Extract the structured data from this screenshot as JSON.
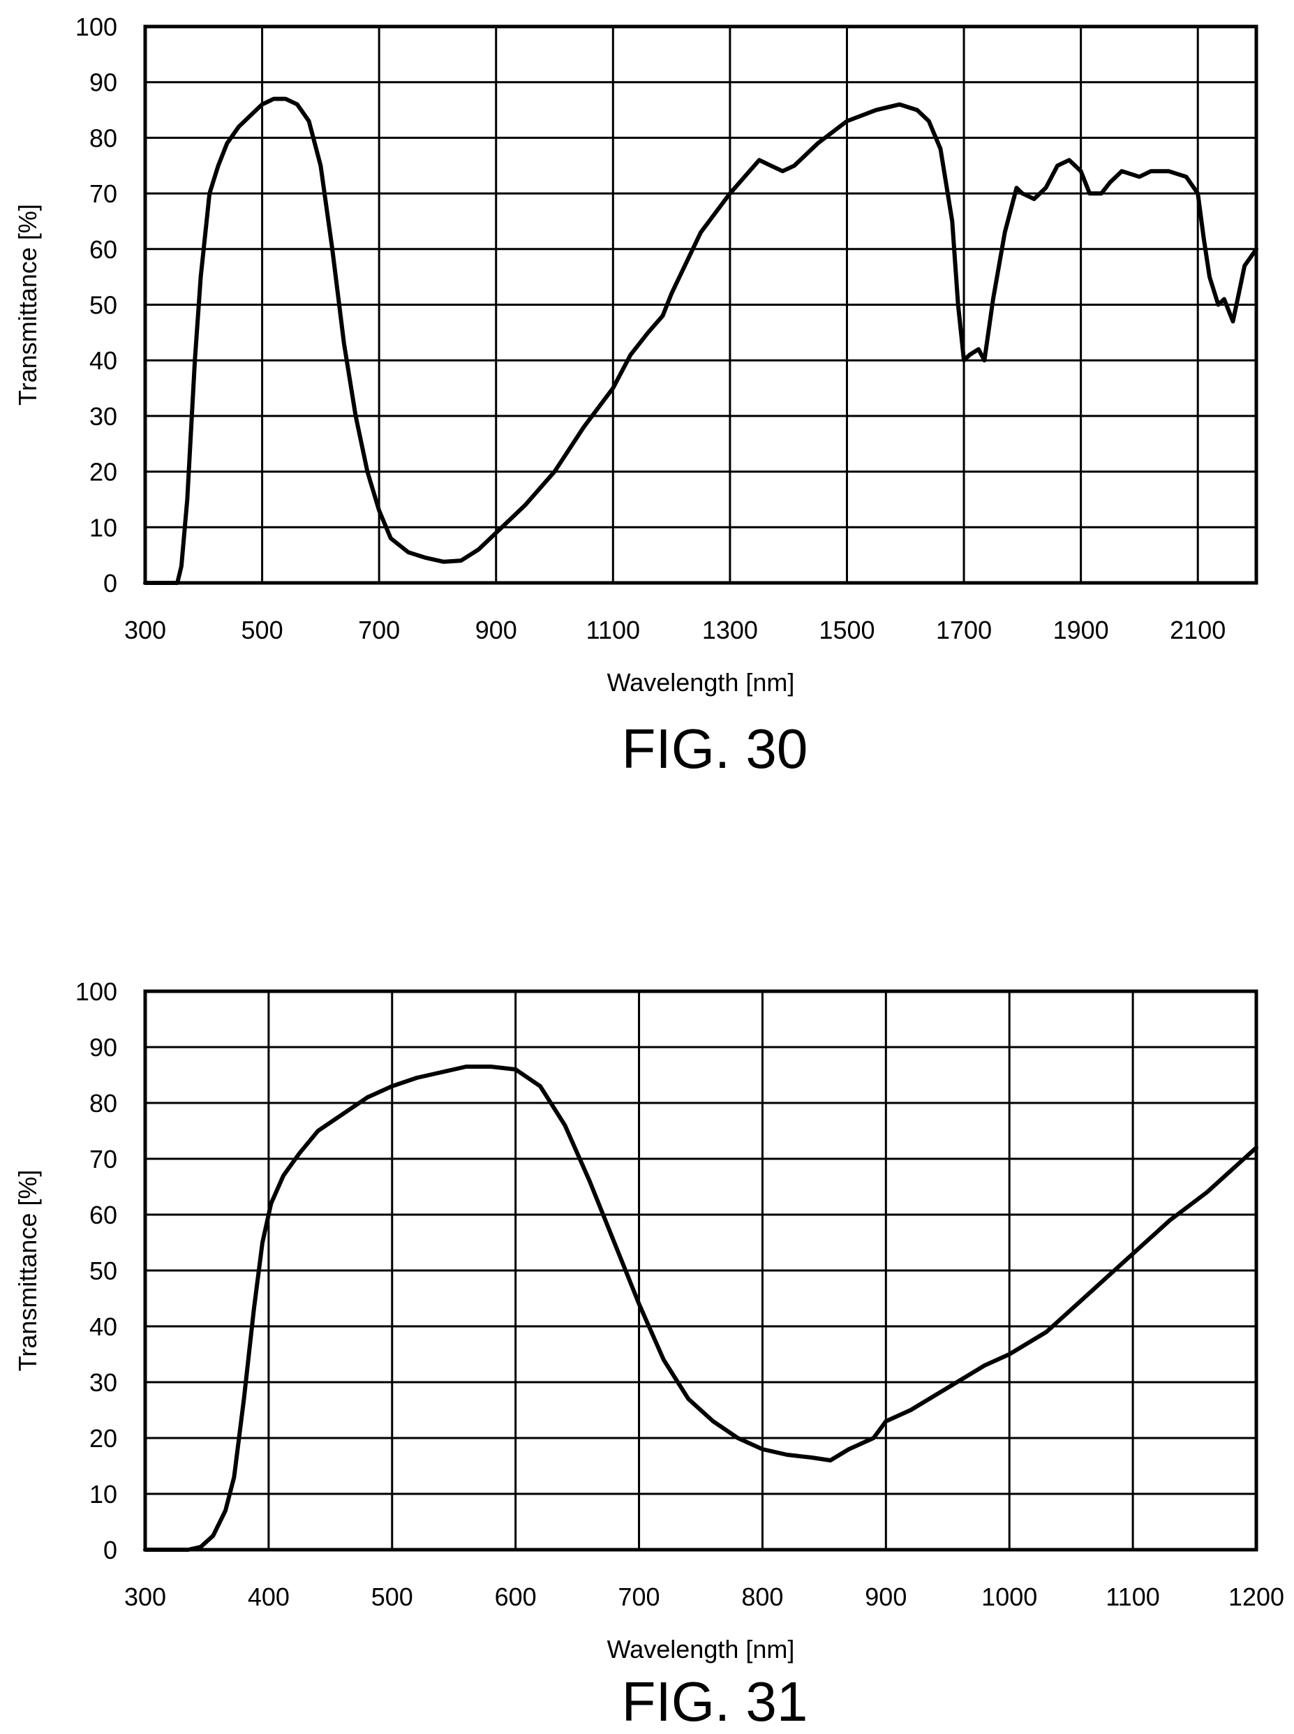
{
  "chart_data": [
    {
      "type": "line",
      "caption": "FIG. 30",
      "xlabel": "Wavelength [nm]",
      "ylabel": "Transmittance [%]",
      "xlim": [
        300,
        2200
      ],
      "ylim": [
        0,
        100
      ],
      "xticks": [
        300,
        500,
        700,
        900,
        1100,
        1300,
        1500,
        1700,
        1900,
        2100
      ],
      "yticks": [
        0,
        10,
        20,
        30,
        40,
        50,
        60,
        70,
        80,
        90,
        100
      ],
      "grid": true,
      "series": [
        {
          "x": [
            300,
            355,
            362,
            372,
            385,
            395,
            410,
            425,
            440,
            460,
            480,
            500,
            520,
            540,
            560,
            580,
            600,
            620,
            640,
            660,
            680,
            700,
            720,
            750,
            780,
            810,
            840,
            870,
            900,
            950,
            1000,
            1050,
            1100,
            1130,
            1160,
            1185,
            1200,
            1250,
            1300,
            1350,
            1370,
            1390,
            1410,
            1450,
            1500,
            1550,
            1590,
            1620,
            1640,
            1660,
            1680,
            1690,
            1700,
            1710,
            1725,
            1735,
            1750,
            1770,
            1790,
            1800,
            1820,
            1840,
            1860,
            1880,
            1900,
            1915,
            1935,
            1950,
            1970,
            2000,
            2020,
            2050,
            2080,
            2100,
            2110,
            2120,
            2135,
            2145,
            2160,
            2170,
            2180,
            2200
          ],
          "y": [
            0,
            0,
            3,
            15,
            40,
            55,
            70,
            75,
            79,
            82,
            84,
            86,
            87,
            87,
            86,
            83,
            75,
            60,
            43,
            30,
            20,
            13,
            8,
            5.5,
            4.5,
            3.8,
            4,
            6,
            9,
            14,
            20,
            28,
            35,
            41,
            45,
            48,
            52,
            63,
            70,
            76,
            75,
            74,
            75,
            79,
            83,
            85,
            86,
            85,
            83,
            78,
            65,
            50,
            40,
            41,
            42,
            40,
            51,
            63,
            71,
            70,
            69,
            71,
            75,
            76,
            74,
            70,
            70,
            72,
            74,
            73,
            74,
            74,
            73,
            70,
            62,
            55,
            50,
            51,
            47,
            52,
            57,
            60
          ]
        }
      ]
    },
    {
      "type": "line",
      "caption": "FIG. 31",
      "xlabel": "Wavelength [nm]",
      "ylabel": "Transmittance [%]",
      "xlim": [
        300,
        1200
      ],
      "ylim": [
        0,
        100
      ],
      "xticks": [
        300,
        400,
        500,
        600,
        700,
        800,
        900,
        1000,
        1100,
        1200
      ],
      "yticks": [
        0,
        10,
        20,
        30,
        40,
        50,
        60,
        70,
        80,
        90,
        100
      ],
      "grid": true,
      "series": [
        {
          "x": [
            300,
            335,
            345,
            355,
            365,
            372,
            380,
            388,
            395,
            402,
            412,
            425,
            440,
            460,
            480,
            500,
            520,
            540,
            560,
            580,
            600,
            620,
            640,
            660,
            680,
            700,
            720,
            740,
            760,
            780,
            800,
            820,
            840,
            855,
            870,
            890,
            900,
            920,
            950,
            980,
            1000,
            1030,
            1060,
            1090,
            1110,
            1130,
            1160,
            1180,
            1200
          ],
          "y": [
            0,
            0,
            0.5,
            2.5,
            7,
            13,
            27,
            43,
            55,
            62,
            67,
            71,
            75,
            78,
            81,
            83,
            84.5,
            85.5,
            86.5,
            86.5,
            86,
            83,
            76,
            66,
            55,
            44,
            34,
            27,
            23,
            20,
            18,
            17,
            16.5,
            16,
            18,
            20,
            23,
            25,
            29,
            33,
            35,
            39,
            45,
            51,
            55,
            59,
            64,
            68,
            72
          ]
        }
      ]
    }
  ]
}
